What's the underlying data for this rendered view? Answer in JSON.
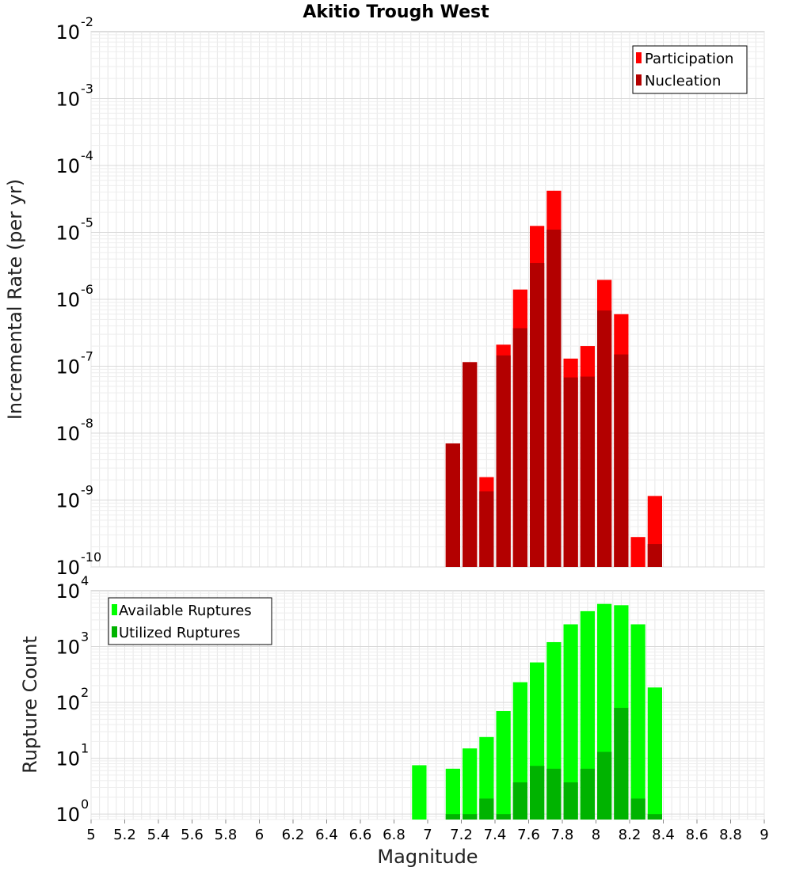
{
  "chart_data": [
    {
      "type": "bar",
      "title": "Akitio Trough West",
      "ylabel": "Incremental Rate (per yr)",
      "xlabel": "",
      "yscale": "log",
      "ylim": [
        1e-10,
        0.01
      ],
      "xlim": [
        5,
        9
      ],
      "grid": true,
      "legend_position": "top-right",
      "y_ticks": [
        {
          "base": "10",
          "exp": "-10"
        },
        {
          "base": "10",
          "exp": "-9"
        },
        {
          "base": "10",
          "exp": "-8"
        },
        {
          "base": "10",
          "exp": "-7"
        },
        {
          "base": "10",
          "exp": "-6"
        },
        {
          "base": "10",
          "exp": "-5"
        },
        {
          "base": "10",
          "exp": "-4"
        },
        {
          "base": "10",
          "exp": "-3"
        },
        {
          "base": "10",
          "exp": "-2"
        }
      ],
      "y_tick_values": [
        1e-10,
        1e-09,
        1e-08,
        1e-07,
        1e-06,
        1e-05,
        0.0001,
        0.001,
        0.01
      ],
      "x": [
        7.15,
        7.25,
        7.35,
        7.45,
        7.55,
        7.65,
        7.75,
        7.85,
        7.95,
        8.05,
        8.15,
        8.25,
        8.35
      ],
      "series": [
        {
          "name": "Participation",
          "color": "#ff0000",
          "values": [
            7e-09,
            1.15e-07,
            2.2e-09,
            2.1e-07,
            1.4e-06,
            1.25e-05,
            4.2e-05,
            1.3e-07,
            2e-07,
            1.95e-06,
            6e-07,
            2.8e-10,
            1.15e-09
          ]
        },
        {
          "name": "Nucleation",
          "color": "#b30000",
          "values": [
            7e-09,
            1.15e-07,
            1.35e-09,
            1.45e-07,
            3.7e-07,
            3.5e-06,
            1.1e-05,
            6.8e-08,
            7e-08,
            6.8e-07,
            1.5e-07,
            null,
            2.2e-10
          ]
        }
      ]
    },
    {
      "type": "bar",
      "title": "",
      "ylabel": "Rupture Count",
      "xlabel": "Magnitude",
      "yscale": "log",
      "ylim": [
        0.8,
        10000
      ],
      "xlim": [
        5,
        9
      ],
      "grid": true,
      "legend_position": "top-left",
      "y_ticks": [
        {
          "base": "10",
          "exp": "0"
        },
        {
          "base": "10",
          "exp": "1"
        },
        {
          "base": "10",
          "exp": "2"
        },
        {
          "base": "10",
          "exp": "3"
        },
        {
          "base": "10",
          "exp": "4"
        }
      ],
      "y_tick_values": [
        1,
        10,
        100,
        1000,
        10000
      ],
      "x_ticks": [
        "5",
        "5.2",
        "5.4",
        "5.6",
        "5.8",
        "6",
        "6.2",
        "6.4",
        "6.6",
        "6.8",
        "7",
        "7.2",
        "7.4",
        "7.6",
        "7.8",
        "8",
        "8.2",
        "8.4",
        "8.6",
        "8.8",
        "9"
      ],
      "x_tick_values": [
        5,
        5.2,
        5.4,
        5.6,
        5.8,
        6,
        6.2,
        6.4,
        6.6,
        6.8,
        7,
        7.2,
        7.4,
        7.6,
        7.8,
        8,
        8.2,
        8.4,
        8.6,
        8.8,
        9
      ],
      "x": [
        6.95,
        7.15,
        7.25,
        7.35,
        7.45,
        7.55,
        7.65,
        7.75,
        7.85,
        7.95,
        8.05,
        8.15,
        8.25,
        8.35
      ],
      "series": [
        {
          "name": "Available Ruptures",
          "color": "#00ff00",
          "values": [
            7.5,
            6.5,
            15,
            24,
            70,
            230,
            520,
            1200,
            2500,
            4300,
            5800,
            5500,
            2500,
            185
          ]
        },
        {
          "name": "Utilized Ruptures",
          "color": "#00b300",
          "values": [
            null,
            1,
            1,
            1.9,
            1,
            3.7,
            7.3,
            6.5,
            3.7,
            6.5,
            13,
            80,
            1.9,
            1
          ]
        }
      ]
    }
  ]
}
